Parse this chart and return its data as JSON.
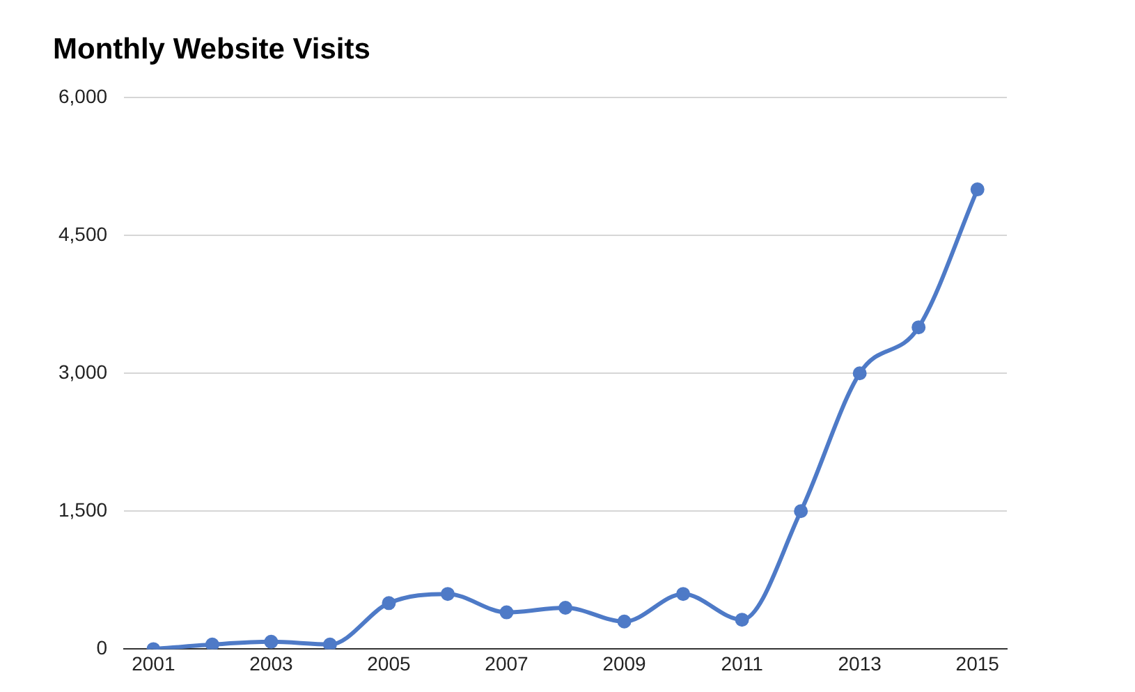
{
  "chart_data": {
    "type": "line",
    "title": "Monthly Website Visits",
    "categories": [
      "2001",
      null,
      "2003",
      null,
      "2005",
      null,
      "2007",
      null,
      "2009",
      null,
      "2011",
      null,
      "2013",
      null,
      "2015"
    ],
    "series": [
      {
        "color": "#4e7ac7",
        "values": [
          0,
          50,
          80,
          50,
          500,
          600,
          400,
          450,
          300,
          600,
          320,
          1500,
          3000,
          3500,
          5000
        ]
      }
    ],
    "ylim": [
      0,
      6000
    ],
    "yticks": [
      {
        "value": 0,
        "label": "0"
      },
      {
        "value": 1500,
        "label": "1,500"
      },
      {
        "value": 3000,
        "label": "3,000"
      },
      {
        "value": 4500,
        "label": "4,500"
      },
      {
        "value": 6000,
        "label": "6,000"
      }
    ],
    "grid": "y",
    "legend": false,
    "marker": "circle",
    "line_style": "solid"
  }
}
